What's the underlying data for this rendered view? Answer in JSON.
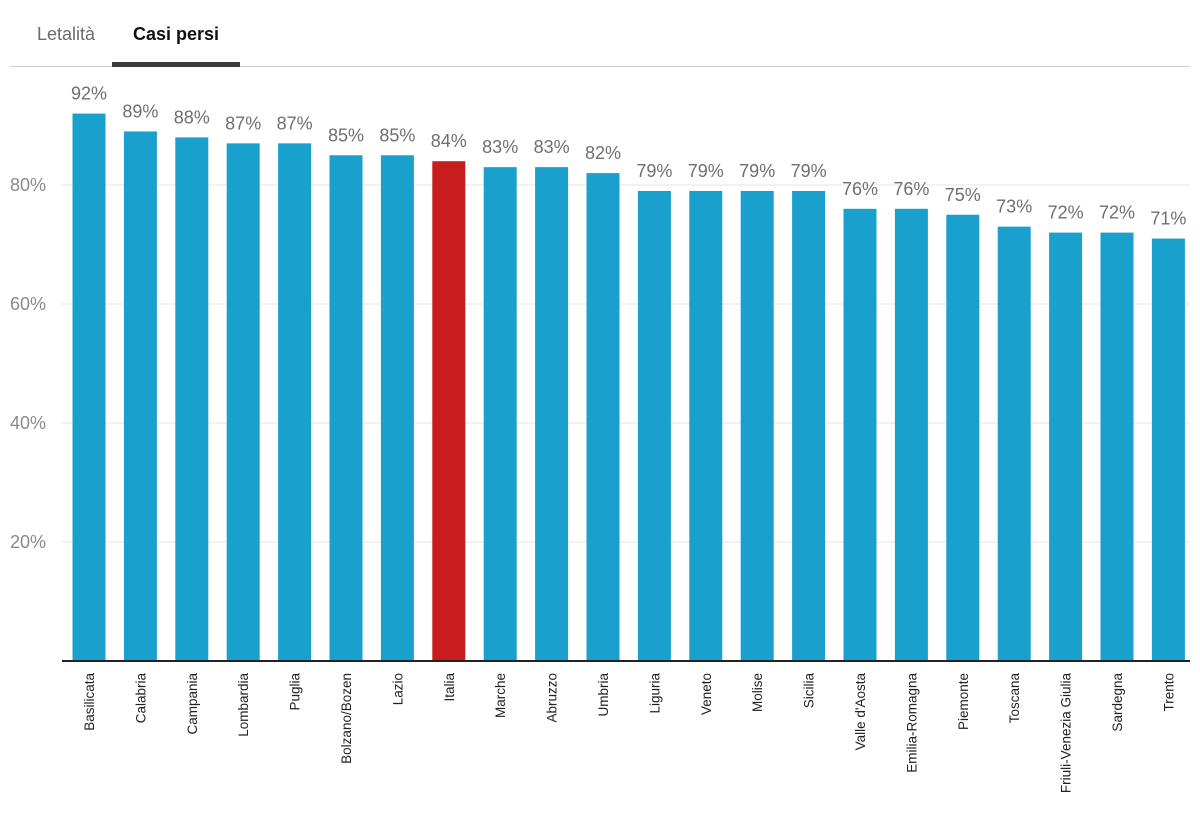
{
  "tabs": [
    {
      "label": "Letalità",
      "active": false
    },
    {
      "label": "Casi persi",
      "active": true
    }
  ],
  "chart_data": {
    "type": "bar",
    "title": "",
    "xlabel": "",
    "ylabel": "",
    "ylim": [
      0,
      100
    ],
    "yticks": [
      20,
      40,
      60,
      80
    ],
    "ytick_labels": [
      "20%",
      "40%",
      "60%",
      "80%"
    ],
    "grid": true,
    "categories": [
      "Basilicata",
      "Calabria",
      "Campania",
      "Lombardia",
      "Puglia",
      "Bolzano/Bozen",
      "Lazio",
      "Italia",
      "Marche",
      "Abruzzo",
      "Umbria",
      "Liguria",
      "Veneto",
      "Molise",
      "Sicilia",
      "Valle d'Aosta",
      "Emilia-Romagna",
      "Piemonte",
      "Toscana",
      "Friuli-Venezia Giulia",
      "Sardegna",
      "Trento"
    ],
    "values": [
      92,
      89,
      88,
      87,
      87,
      85,
      85,
      84,
      83,
      83,
      82,
      79,
      79,
      79,
      79,
      76,
      76,
      75,
      73,
      72,
      72,
      71
    ],
    "value_labels": [
      "92%",
      "89%",
      "88%",
      "87%",
      "87%",
      "85%",
      "85%",
      "84%",
      "83%",
      "83%",
      "82%",
      "79%",
      "79%",
      "79%",
      "79%",
      "76%",
      "76%",
      "75%",
      "73%",
      "72%",
      "72%",
      "71%"
    ],
    "highlight_category": "Italia",
    "colors": {
      "bar": "#1aa0cd",
      "highlight": "#c81d1f",
      "grid": "#e6e6e6",
      "axis": "#222222"
    }
  }
}
